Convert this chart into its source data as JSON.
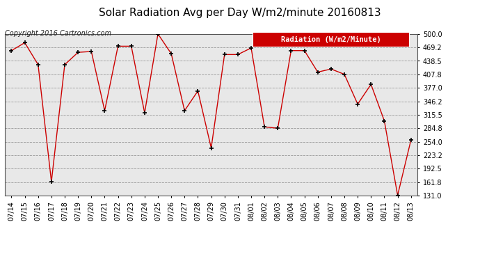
{
  "title": "Solar Radiation Avg per Day W/m2/minute 20160813",
  "copyright": "Copyright 2016 Cartronics.com",
  "legend_label": "Radiation (W/m2/Minute)",
  "dates": [
    "07/14",
    "07/15",
    "07/16",
    "07/17",
    "07/18",
    "07/19",
    "07/20",
    "07/21",
    "07/22",
    "07/23",
    "07/24",
    "07/25",
    "07/26",
    "07/27",
    "07/28",
    "07/29",
    "07/30",
    "07/31",
    "08/01",
    "08/02",
    "08/03",
    "08/04",
    "08/05",
    "08/06",
    "08/07",
    "08/08",
    "08/09",
    "08/10",
    "08/11",
    "08/12",
    "08/13"
  ],
  "values": [
    462,
    480,
    430,
    163,
    430,
    458,
    460,
    325,
    472,
    472,
    320,
    500,
    455,
    325,
    370,
    240,
    453,
    453,
    468,
    288,
    285,
    462,
    462,
    413,
    420,
    408,
    340,
    385,
    302,
    132,
    258
  ],
  "yticks": [
    131.0,
    161.8,
    192.5,
    223.2,
    254.0,
    284.8,
    315.5,
    346.2,
    377.0,
    407.8,
    438.5,
    469.2,
    500.0
  ],
  "ymin": 131.0,
  "ymax": 500.0,
  "line_color": "#cc0000",
  "marker_color": "#000000",
  "bg_color": "#ffffff",
  "plot_bg_color": "#e8e8e8",
  "grid_color": "#999999",
  "legend_bg": "#cc0000",
  "legend_text_color": "#ffffff",
  "title_fontsize": 11,
  "copyright_fontsize": 7,
  "tick_fontsize": 7,
  "legend_fontsize": 7.5
}
